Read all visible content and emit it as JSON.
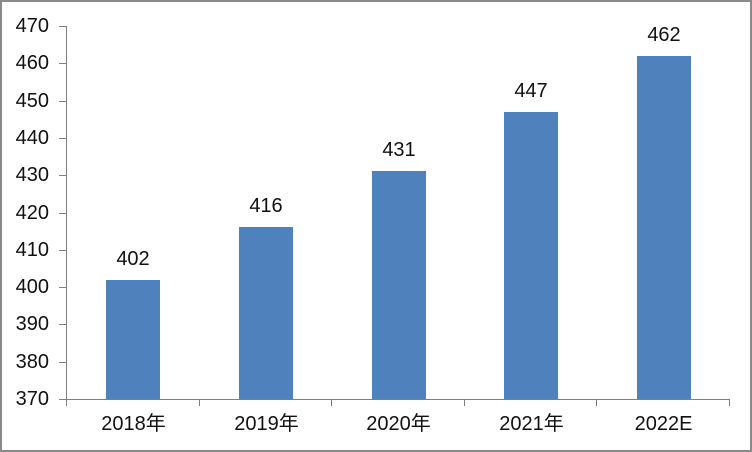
{
  "chart_data": {
    "type": "bar",
    "title": "",
    "xlabel": "",
    "ylabel": "",
    "categories": [
      "2018年",
      "2019年",
      "2020年",
      "2021年",
      "2022E"
    ],
    "values": [
      402,
      416,
      431,
      447,
      462
    ],
    "ylim": [
      370,
      470
    ],
    "ytick_interval": 10,
    "ytick_labels": [
      "370",
      "380",
      "390",
      "400",
      "410",
      "420",
      "430",
      "440",
      "450",
      "460",
      "470"
    ],
    "grid": false,
    "legend": "none",
    "data_labels_shown": true,
    "colors": {
      "bar": "#4F81BD",
      "axis": "#7F7F7F",
      "text": "#111111",
      "frame_border": "#8A8A8A",
      "background": "#FFFFFF"
    }
  }
}
